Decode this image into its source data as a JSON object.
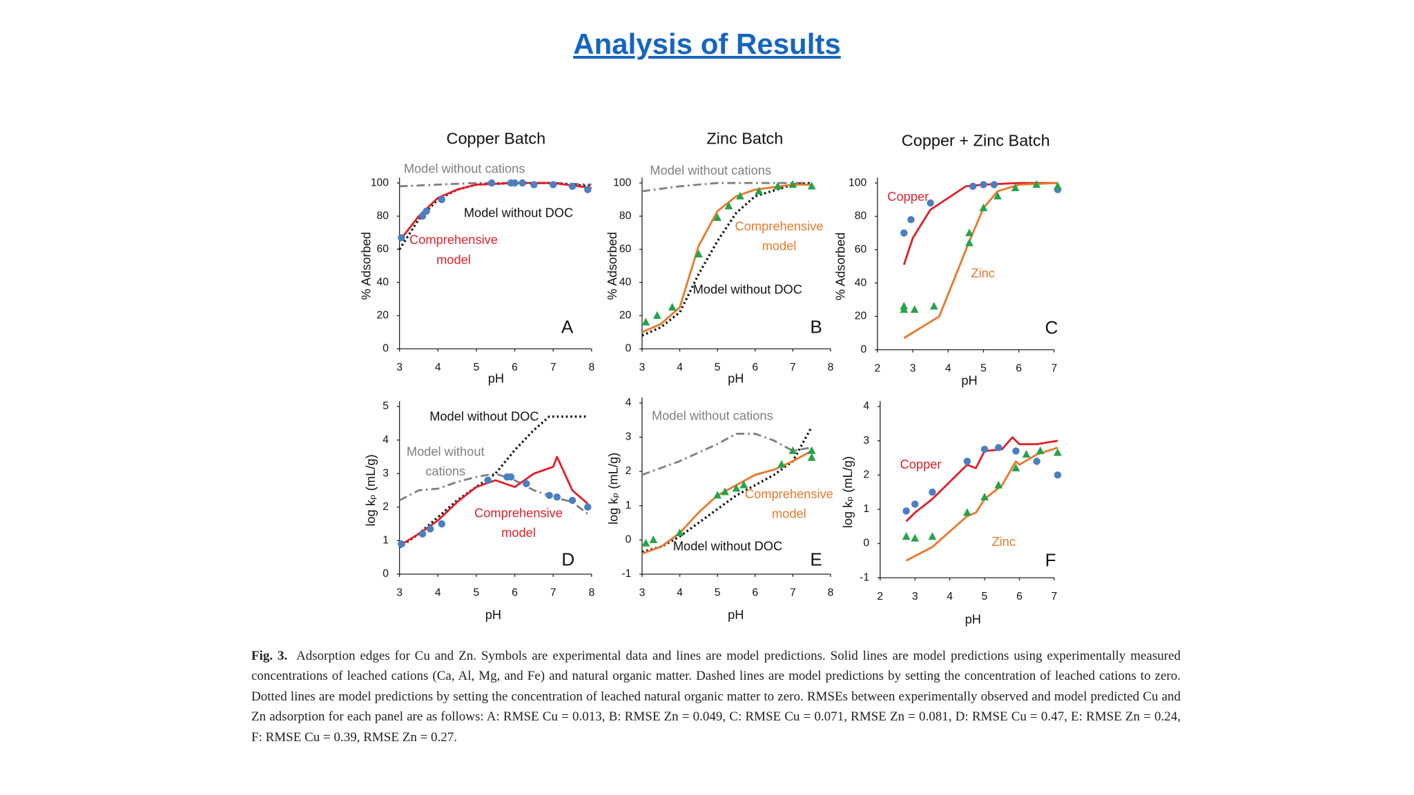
{
  "title": "Analysis of Results",
  "caption": {
    "label": "Fig. 3.",
    "text": "Adsorption edges for Cu and Zn. Symbols are experimental data and lines are model predictions. Solid lines are model predictions using experimentally measured concentrations of leached cations (Ca, Al, Mg, and Fe) and natural organic matter. Dashed lines are model predictions by setting the concentration of leached cations to zero. Dotted lines are model predictions by setting the concentration of leached natural organic matter to zero. RMSEs between experimentally observed and model predicted Cu and Zn adsorption for each panel are as follows: A: RMSE Cu = 0.013, B: RMSE Zn = 0.049, C: RMSE Cu = 0.071, RMSE Zn = 0.081, D: RMSE Cu = 0.47, E: RMSE Zn = 0.24, F: RMSE Cu = 0.39, RMSE Zn = 0.27."
  },
  "chart_data": [
    {
      "type": "line",
      "title": "Copper Batch",
      "x_label": "pH",
      "y_label": "% Adsorbed",
      "xlim": [
        3,
        8
      ],
      "xticks": [
        3,
        4,
        5,
        6,
        7,
        8
      ],
      "ylim": [
        0,
        100
      ],
      "yticks": [
        0,
        20,
        40,
        60,
        80,
        100
      ],
      "series": [
        {
          "style": "dashdot",
          "color": "#7f7f7f",
          "x": [
            3,
            4,
            5,
            6,
            7,
            8
          ],
          "values": [
            98,
            99,
            100,
            100,
            100,
            99
          ]
        },
        {
          "style": "dotted",
          "color": "#111111",
          "x": [
            3,
            3.5,
            4,
            4.5,
            5,
            6,
            7,
            8
          ],
          "values": [
            60,
            78,
            90,
            96,
            99,
            100,
            100,
            98
          ]
        },
        {
          "style": "solid",
          "color": "#e0202a",
          "x": [
            3,
            3.5,
            4,
            4.5,
            5,
            6,
            7,
            8
          ],
          "values": [
            65,
            80,
            91,
            96,
            99,
            100,
            100,
            97
          ]
        },
        {
          "style": "markers",
          "marker": "circle",
          "color": "#4a7fc1",
          "x": [
            3.05,
            3.6,
            3.7,
            4.1,
            5.4,
            5.9,
            6.0,
            6.2,
            6.5,
            7.0,
            7.5,
            7.9
          ],
          "values": [
            67,
            80,
            83,
            90,
            100,
            100,
            100,
            100,
            99,
            99,
            98,
            96
          ]
        }
      ],
      "annotations": [
        {
          "text": [
            "Model without cations"
          ],
          "color": "#7f7f7f"
        },
        {
          "text": [
            "Model without DOC"
          ],
          "color": "#111111"
        },
        {
          "text": [
            "Comprehensive",
            "model"
          ],
          "color": "#e0202a"
        },
        {
          "text": [
            "A"
          ],
          "color": "#111111"
        }
      ]
    },
    {
      "type": "line",
      "title": "Zinc Batch",
      "x_label": "pH",
      "y_label": "% Adsorbed",
      "xlim": [
        3,
        8
      ],
      "xticks": [
        3,
        4,
        5,
        6,
        7,
        8
      ],
      "ylim": [
        0,
        100
      ],
      "yticks": [
        0,
        20,
        40,
        60,
        80,
        100
      ],
      "series": [
        {
          "style": "dashdot",
          "color": "#7f7f7f",
          "x": [
            3,
            4,
            5,
            6,
            7,
            7.5
          ],
          "values": [
            95,
            98,
            100,
            100,
            100,
            100
          ]
        },
        {
          "style": "dotted",
          "color": "#111111",
          "x": [
            3,
            3.5,
            4,
            4.5,
            5,
            5.5,
            6,
            7,
            7.5
          ],
          "values": [
            8,
            13,
            22,
            45,
            65,
            82,
            92,
            99,
            100
          ]
        },
        {
          "style": "solid",
          "color": "#e8792b",
          "x": [
            3,
            3.5,
            4,
            4.5,
            5,
            5.5,
            6,
            7,
            7.5
          ],
          "values": [
            10,
            15,
            25,
            62,
            83,
            92,
            96,
            99,
            99
          ]
        },
        {
          "style": "markers",
          "marker": "triangle",
          "color": "#27a34a",
          "x": [
            3.1,
            3.4,
            3.8,
            4.5,
            5.0,
            5.3,
            5.6,
            6.1,
            6.6,
            7.0,
            7.5
          ],
          "values": [
            16,
            20,
            25,
            57,
            79,
            86,
            92,
            95,
            98,
            99,
            98
          ]
        }
      ],
      "annotations": [
        {
          "text": [
            "Model without cations"
          ],
          "color": "#7f7f7f"
        },
        {
          "text": [
            "Comprehensive",
            "model"
          ],
          "color": "#e8792b"
        },
        {
          "text": [
            "Model without DOC"
          ],
          "color": "#111111"
        },
        {
          "text": [
            "B"
          ],
          "color": "#111111"
        }
      ]
    },
    {
      "type": "line",
      "title": "Copper + Zinc Batch",
      "x_label": "pH",
      "y_label": "% Adsorbed",
      "xlim": [
        2,
        7
      ],
      "xticks": [
        2,
        3,
        4,
        5,
        6,
        7
      ],
      "ylim": [
        0,
        100
      ],
      "yticks": [
        0,
        20,
        40,
        60,
        80,
        100
      ],
      "series": [
        {
          "style": "solid",
          "color": "#e0202a",
          "x": [
            2.75,
            3,
            3.5,
            4.5,
            5,
            6,
            7.1
          ],
          "values": [
            51,
            67,
            84,
            98,
            99,
            100,
            100
          ]
        },
        {
          "style": "solid",
          "color": "#e8792b",
          "x": [
            2.75,
            3.75,
            4.6,
            5,
            5.4,
            6,
            7.1
          ],
          "values": [
            7,
            20,
            65,
            85,
            95,
            99,
            100
          ]
        },
        {
          "style": "markers",
          "marker": "circle",
          "color": "#4a7fc1",
          "x": [
            2.75,
            2.95,
            3.5,
            4.7,
            5,
            5.3,
            7.1
          ],
          "values": [
            70,
            78,
            88,
            98,
            99,
            99,
            96
          ]
        },
        {
          "style": "markers",
          "marker": "triangle",
          "color": "#27a34a",
          "x": [
            2.75,
            2.75,
            3.05,
            3.6,
            4.6,
            4.6,
            5.0,
            5.4,
            5.9,
            6.5,
            7.1
          ],
          "values": [
            26,
            24,
            24,
            26,
            70,
            64,
            85,
            92,
            97,
            99,
            98
          ]
        }
      ],
      "annotations": [
        {
          "text": [
            "Copper"
          ],
          "color": "#e0202a"
        },
        {
          "text": [
            "Zinc"
          ],
          "color": "#e8792b"
        },
        {
          "text": [
            "C"
          ],
          "color": "#111111"
        }
      ]
    },
    {
      "type": "line",
      "x_label": "pH",
      "y_label": "log kₚ (mL/g)",
      "xlim": [
        3,
        8
      ],
      "xticks": [
        3,
        4,
        5,
        6,
        7,
        8
      ],
      "ylim": [
        0,
        5
      ],
      "yticks": [
        0,
        1,
        2,
        3,
        4,
        5
      ],
      "series": [
        {
          "style": "dashdot",
          "color": "#7f7f7f",
          "x": [
            3,
            3.5,
            4,
            4.5,
            5,
            5.5,
            6,
            6.5,
            7,
            7.5,
            7.9
          ],
          "values": [
            2.2,
            2.5,
            2.55,
            2.75,
            2.9,
            3.0,
            2.8,
            2.5,
            2.3,
            2.15,
            1.8
          ]
        },
        {
          "style": "dotted",
          "color": "#111111",
          "x": [
            3,
            3.5,
            4,
            4.5,
            5,
            5.5,
            6,
            6.5,
            6.9,
            7.2,
            7.9
          ],
          "values": [
            0.8,
            1.2,
            1.7,
            2.2,
            2.6,
            3.0,
            3.7,
            4.3,
            4.7,
            4.7,
            4.7
          ]
        },
        {
          "style": "solid",
          "color": "#e0202a",
          "x": [
            3,
            3.5,
            4,
            4.5,
            5,
            5.5,
            6,
            6.5,
            7,
            7.1,
            7.5,
            7.9
          ],
          "values": [
            0.85,
            1.2,
            1.6,
            2.15,
            2.6,
            2.8,
            2.6,
            3.0,
            3.2,
            3.5,
            2.5,
            2.1
          ]
        },
        {
          "style": "markers",
          "marker": "circle",
          "color": "#4a7fc1",
          "x": [
            3.05,
            3.6,
            3.8,
            4.1,
            5.3,
            5.8,
            5.9,
            6.3,
            6.9,
            7.1,
            7.5,
            7.9
          ],
          "values": [
            0.9,
            1.2,
            1.35,
            1.5,
            2.8,
            2.9,
            2.9,
            2.7,
            2.35,
            2.3,
            2.2,
            2.0
          ]
        }
      ],
      "annotations": [
        {
          "text": [
            "Model without DOC"
          ],
          "color": "#111111"
        },
        {
          "text": [
            "Model without",
            "cations"
          ],
          "color": "#7f7f7f"
        },
        {
          "text": [
            "Comprehensive",
            "model"
          ],
          "color": "#e0202a"
        },
        {
          "text": [
            "D"
          ],
          "color": "#111111"
        }
      ]
    },
    {
      "type": "line",
      "x_label": "pH",
      "y_label": "log kₚ (mL/g)",
      "xlim": [
        3,
        8
      ],
      "xticks": [
        3,
        4,
        5,
        6,
        7,
        8
      ],
      "ylim": [
        -1,
        4
      ],
      "yticks": [
        -1,
        0,
        1,
        2,
        3,
        4
      ],
      "series": [
        {
          "style": "dashdot",
          "color": "#7f7f7f",
          "x": [
            3,
            4,
            5,
            5.5,
            6,
            6.5,
            7,
            7.5
          ],
          "values": [
            1.9,
            2.3,
            2.8,
            3.1,
            3.1,
            2.9,
            2.6,
            2.7
          ]
        },
        {
          "style": "dotted",
          "color": "#111111",
          "x": [
            3,
            3.5,
            4,
            4.5,
            5,
            5.5,
            6,
            6.5,
            7,
            7.5
          ],
          "values": [
            -0.35,
            -0.2,
            0.1,
            0.5,
            0.9,
            1.3,
            1.6,
            1.9,
            2.3,
            3.3
          ]
        },
        {
          "style": "solid",
          "color": "#e8792b",
          "x": [
            3,
            3.5,
            4,
            4.5,
            5,
            5.5,
            6,
            6.5,
            7,
            7.5
          ],
          "values": [
            -0.4,
            -0.2,
            0.2,
            0.8,
            1.3,
            1.6,
            1.9,
            2.05,
            2.3,
            2.6
          ]
        },
        {
          "style": "markers",
          "marker": "triangle",
          "color": "#27a34a",
          "x": [
            3.1,
            3.3,
            4.0,
            5.0,
            5.2,
            5.5,
            5.7,
            6.7,
            7.0,
            7.5,
            7.5
          ],
          "values": [
            -0.1,
            0.0,
            0.2,
            1.3,
            1.4,
            1.5,
            1.6,
            2.2,
            2.6,
            2.6,
            2.4
          ]
        }
      ],
      "annotations": [
        {
          "text": [
            "Model without cations"
          ],
          "color": "#7f7f7f"
        },
        {
          "text": [
            "Comprehensive",
            "model"
          ],
          "color": "#e8792b"
        },
        {
          "text": [
            "Model without DOC"
          ],
          "color": "#111111"
        },
        {
          "text": [
            "E"
          ],
          "color": "#111111"
        }
      ]
    },
    {
      "type": "line",
      "x_label": "pH",
      "y_label": "log kₚ (mL/g)",
      "xlim": [
        2,
        7
      ],
      "xticks": [
        2,
        3,
        4,
        5,
        6,
        7
      ],
      "ylim": [
        -1,
        4
      ],
      "yticks": [
        -1,
        0,
        1,
        2,
        3,
        4
      ],
      "series": [
        {
          "style": "solid",
          "color": "#e0202a",
          "x": [
            2.75,
            3,
            3.5,
            4.5,
            4.75,
            5,
            5.5,
            5.8,
            6,
            6.5,
            7.1
          ],
          "values": [
            0.65,
            0.9,
            1.3,
            2.3,
            2.2,
            2.7,
            2.75,
            3.1,
            2.9,
            2.9,
            3.0
          ]
        },
        {
          "style": "solid",
          "color": "#e8792b",
          "x": [
            2.75,
            3.5,
            4.5,
            4.75,
            5,
            5.5,
            5.9,
            6,
            6.5,
            7.1
          ],
          "values": [
            -0.5,
            -0.1,
            0.8,
            0.9,
            1.3,
            1.7,
            2.4,
            2.3,
            2.6,
            2.8
          ]
        },
        {
          "style": "markers",
          "marker": "circle",
          "color": "#4a7fc1",
          "x": [
            2.75,
            3,
            3.5,
            4.5,
            5,
            5.4,
            5.9,
            6.5,
            7.1
          ],
          "values": [
            0.95,
            1.15,
            1.5,
            2.4,
            2.75,
            2.8,
            2.7,
            2.4,
            2.0
          ]
        },
        {
          "style": "markers",
          "marker": "triangle",
          "color": "#27a34a",
          "x": [
            2.75,
            3,
            3.5,
            4.5,
            5,
            5.4,
            5.9,
            6.2,
            6.6,
            7.1
          ],
          "values": [
            0.2,
            0.15,
            0.2,
            0.9,
            1.35,
            1.7,
            2.2,
            2.6,
            2.7,
            2.65
          ]
        }
      ],
      "annotations": [
        {
          "text": [
            "Copper"
          ],
          "color": "#e0202a"
        },
        {
          "text": [
            "Zinc"
          ],
          "color": "#e8792b"
        },
        {
          "text": [
            "F"
          ],
          "color": "#111111"
        }
      ]
    }
  ]
}
